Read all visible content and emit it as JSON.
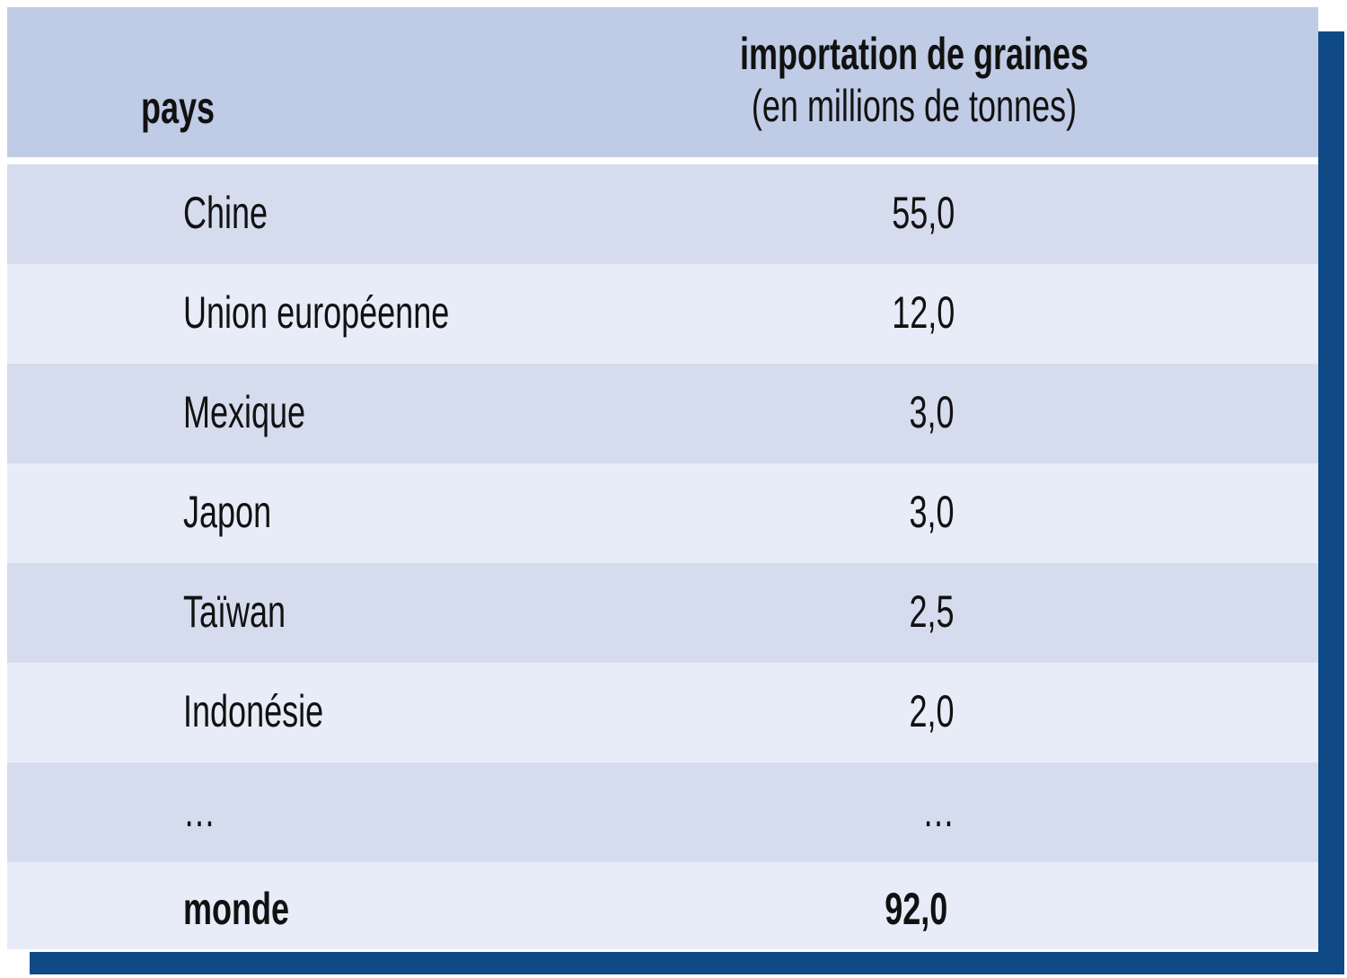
{
  "table": {
    "header": {
      "country": "pays",
      "value_title": "importation de graines",
      "value_unit": "(en millions de tonnes)"
    },
    "rows": [
      [
        "Chine",
        "55,0"
      ],
      [
        "Union européenne",
        "12,0"
      ],
      [
        "Mexique",
        "3,0"
      ],
      [
        "Japon",
        "3,0"
      ],
      [
        "Taïwan",
        "2,5"
      ],
      [
        "Indonésie",
        "2,0"
      ],
      [
        "…",
        "…"
      ]
    ],
    "total": [
      "monde",
      "92,0"
    ]
  }
}
